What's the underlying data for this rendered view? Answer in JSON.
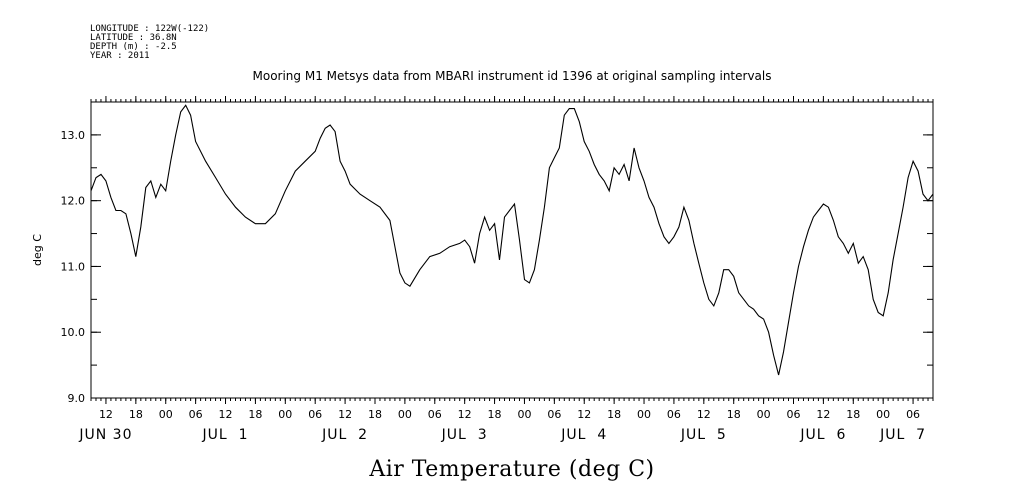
{
  "header": {
    "longitude": "LONGITUDE : 122W(-122)",
    "latitude": "LATITUDE : 36.8N",
    "depth": "DEPTH (m) : -2.5",
    "year": "YEAR : 2011"
  },
  "chart_data": {
    "type": "line",
    "title": "Mooring M1 Metsys data from MBARI instrument id 1396 at original sampling intervals",
    "xlabel": "Air Temperature (deg C)",
    "ylabel": "deg C",
    "xlim": [
      "2011-06-30T09:00",
      "2011-07-07T10:00"
    ],
    "ylim": [
      9.0,
      13.5
    ],
    "y_ticks": [
      "9.0",
      "10.0",
      "11.0",
      "12.0",
      "13.0"
    ],
    "x_hour_ticks": [
      {
        "t": "2011-06-30T12:00",
        "label": "12"
      },
      {
        "t": "2011-06-30T18:00",
        "label": "18"
      },
      {
        "t": "2011-07-01T00:00",
        "label": "00"
      },
      {
        "t": "2011-07-01T06:00",
        "label": "06"
      },
      {
        "t": "2011-07-01T12:00",
        "label": "12"
      },
      {
        "t": "2011-07-01T18:00",
        "label": "18"
      },
      {
        "t": "2011-07-02T00:00",
        "label": "00"
      },
      {
        "t": "2011-07-02T06:00",
        "label": "06"
      },
      {
        "t": "2011-07-02T12:00",
        "label": "12"
      },
      {
        "t": "2011-07-02T18:00",
        "label": "18"
      },
      {
        "t": "2011-07-03T00:00",
        "label": "00"
      },
      {
        "t": "2011-07-03T06:00",
        "label": "06"
      },
      {
        "t": "2011-07-03T12:00",
        "label": "12"
      },
      {
        "t": "2011-07-03T18:00",
        "label": "18"
      },
      {
        "t": "2011-07-04T00:00",
        "label": "00"
      },
      {
        "t": "2011-07-04T06:00",
        "label": "06"
      },
      {
        "t": "2011-07-04T12:00",
        "label": "12"
      },
      {
        "t": "2011-07-04T18:00",
        "label": "18"
      },
      {
        "t": "2011-07-05T00:00",
        "label": "00"
      },
      {
        "t": "2011-07-05T06:00",
        "label": "06"
      },
      {
        "t": "2011-07-05T12:00",
        "label": "12"
      },
      {
        "t": "2011-07-05T18:00",
        "label": "18"
      },
      {
        "t": "2011-07-06T00:00",
        "label": "00"
      },
      {
        "t": "2011-07-06T06:00",
        "label": "06"
      },
      {
        "t": "2011-07-06T12:00",
        "label": "12"
      },
      {
        "t": "2011-07-06T18:00",
        "label": "18"
      },
      {
        "t": "2011-07-07T00:00",
        "label": "00"
      },
      {
        "t": "2011-07-07T06:00",
        "label": "06"
      }
    ],
    "x_day_labels": [
      {
        "t": "2011-06-30T12:00",
        "label": "JUN 30"
      },
      {
        "t": "2011-07-01T12:00",
        "label": "JUL  1"
      },
      {
        "t": "2011-07-02T12:00",
        "label": "JUL  2"
      },
      {
        "t": "2011-07-03T12:00",
        "label": "JUL  3"
      },
      {
        "t": "2011-07-04T12:00",
        "label": "JUL  4"
      },
      {
        "t": "2011-07-05T12:00",
        "label": "JUL  5"
      },
      {
        "t": "2011-07-06T12:00",
        "label": "JUL  6"
      },
      {
        "t": "2011-07-07T04:00",
        "label": "JUL  7"
      }
    ],
    "grid": false,
    "series": [
      {
        "values": [
          [
            "2011-06-30T09:00",
            12.15
          ],
          [
            "2011-06-30T10:00",
            12.35
          ],
          [
            "2011-06-30T11:00",
            12.4
          ],
          [
            "2011-06-30T12:00",
            12.3
          ],
          [
            "2011-06-30T13:00",
            12.05
          ],
          [
            "2011-06-30T14:00",
            11.85
          ],
          [
            "2011-06-30T15:00",
            11.85
          ],
          [
            "2011-06-30T16:00",
            11.8
          ],
          [
            "2011-06-30T17:00",
            11.5
          ],
          [
            "2011-06-30T18:00",
            11.15
          ],
          [
            "2011-06-30T19:00",
            11.6
          ],
          [
            "2011-06-30T20:00",
            12.2
          ],
          [
            "2011-06-30T21:00",
            12.3
          ],
          [
            "2011-06-30T22:00",
            12.05
          ],
          [
            "2011-06-30T23:00",
            12.25
          ],
          [
            "2011-07-01T00:00",
            12.15
          ],
          [
            "2011-07-01T01:00",
            12.6
          ],
          [
            "2011-07-01T02:00",
            13.0
          ],
          [
            "2011-07-01T03:00",
            13.35
          ],
          [
            "2011-07-01T04:00",
            13.45
          ],
          [
            "2011-07-01T05:00",
            13.3
          ],
          [
            "2011-07-01T06:00",
            12.9
          ],
          [
            "2011-07-01T08:00",
            12.6
          ],
          [
            "2011-07-01T10:00",
            12.35
          ],
          [
            "2011-07-01T12:00",
            12.1
          ],
          [
            "2011-07-01T14:00",
            11.9
          ],
          [
            "2011-07-01T16:00",
            11.75
          ],
          [
            "2011-07-01T18:00",
            11.65
          ],
          [
            "2011-07-01T20:00",
            11.65
          ],
          [
            "2011-07-01T22:00",
            11.8
          ],
          [
            "2011-07-02T00:00",
            12.15
          ],
          [
            "2011-07-02T02:00",
            12.45
          ],
          [
            "2011-07-02T04:00",
            12.6
          ],
          [
            "2011-07-02T06:00",
            12.75
          ],
          [
            "2011-07-02T07:00",
            12.95
          ],
          [
            "2011-07-02T08:00",
            13.1
          ],
          [
            "2011-07-02T09:00",
            13.15
          ],
          [
            "2011-07-02T10:00",
            13.05
          ],
          [
            "2011-07-02T11:00",
            12.6
          ],
          [
            "2011-07-02T12:00",
            12.45
          ],
          [
            "2011-07-02T13:00",
            12.25
          ],
          [
            "2011-07-02T15:00",
            12.1
          ],
          [
            "2011-07-02T17:00",
            12.0
          ],
          [
            "2011-07-02T19:00",
            11.9
          ],
          [
            "2011-07-02T21:00",
            11.7
          ],
          [
            "2011-07-02T22:00",
            11.3
          ],
          [
            "2011-07-02T23:00",
            10.9
          ],
          [
            "2011-07-03T00:00",
            10.75
          ],
          [
            "2011-07-03T01:00",
            10.7
          ],
          [
            "2011-07-03T03:00",
            10.95
          ],
          [
            "2011-07-03T05:00",
            11.15
          ],
          [
            "2011-07-03T07:00",
            11.2
          ],
          [
            "2011-07-03T09:00",
            11.3
          ],
          [
            "2011-07-03T11:00",
            11.35
          ],
          [
            "2011-07-03T12:00",
            11.4
          ],
          [
            "2011-07-03T13:00",
            11.3
          ],
          [
            "2011-07-03T14:00",
            11.05
          ],
          [
            "2011-07-03T15:00",
            11.5
          ],
          [
            "2011-07-03T16:00",
            11.75
          ],
          [
            "2011-07-03T17:00",
            11.55
          ],
          [
            "2011-07-03T18:00",
            11.65
          ],
          [
            "2011-07-03T19:00",
            11.1
          ],
          [
            "2011-07-03T20:00",
            11.75
          ],
          [
            "2011-07-03T21:00",
            11.85
          ],
          [
            "2011-07-03T22:00",
            11.95
          ],
          [
            "2011-07-03T23:00",
            11.4
          ],
          [
            "2011-07-04T00:00",
            10.8
          ],
          [
            "2011-07-04T01:00",
            10.75
          ],
          [
            "2011-07-04T02:00",
            10.95
          ],
          [
            "2011-07-04T03:00",
            11.4
          ],
          [
            "2011-07-04T04:00",
            11.9
          ],
          [
            "2011-07-04T05:00",
            12.5
          ],
          [
            "2011-07-04T06:00",
            12.65
          ],
          [
            "2011-07-04T07:00",
            12.8
          ],
          [
            "2011-07-04T08:00",
            13.3
          ],
          [
            "2011-07-04T09:00",
            13.4
          ],
          [
            "2011-07-04T10:00",
            13.4
          ],
          [
            "2011-07-04T11:00",
            13.2
          ],
          [
            "2011-07-04T12:00",
            12.9
          ],
          [
            "2011-07-04T13:00",
            12.75
          ],
          [
            "2011-07-04T14:00",
            12.55
          ],
          [
            "2011-07-04T15:00",
            12.4
          ],
          [
            "2011-07-04T16:00",
            12.3
          ],
          [
            "2011-07-04T17:00",
            12.15
          ],
          [
            "2011-07-04T18:00",
            12.5
          ],
          [
            "2011-07-04T19:00",
            12.4
          ],
          [
            "2011-07-04T20:00",
            12.55
          ],
          [
            "2011-07-04T21:00",
            12.3
          ],
          [
            "2011-07-04T22:00",
            12.8
          ],
          [
            "2011-07-04T23:00",
            12.5
          ],
          [
            "2011-07-05T00:00",
            12.3
          ],
          [
            "2011-07-05T01:00",
            12.05
          ],
          [
            "2011-07-05T02:00",
            11.9
          ],
          [
            "2011-07-05T03:00",
            11.65
          ],
          [
            "2011-07-05T04:00",
            11.45
          ],
          [
            "2011-07-05T05:00",
            11.35
          ],
          [
            "2011-07-05T06:00",
            11.45
          ],
          [
            "2011-07-05T07:00",
            11.6
          ],
          [
            "2011-07-05T08:00",
            11.9
          ],
          [
            "2011-07-05T09:00",
            11.7
          ],
          [
            "2011-07-05T10:00",
            11.35
          ],
          [
            "2011-07-05T11:00",
            11.05
          ],
          [
            "2011-07-05T12:00",
            10.75
          ],
          [
            "2011-07-05T13:00",
            10.5
          ],
          [
            "2011-07-05T14:00",
            10.4
          ],
          [
            "2011-07-05T15:00",
            10.6
          ],
          [
            "2011-07-05T16:00",
            10.95
          ],
          [
            "2011-07-05T17:00",
            10.95
          ],
          [
            "2011-07-05T18:00",
            10.85
          ],
          [
            "2011-07-05T19:00",
            10.6
          ],
          [
            "2011-07-05T20:00",
            10.5
          ],
          [
            "2011-07-05T21:00",
            10.4
          ],
          [
            "2011-07-05T22:00",
            10.35
          ],
          [
            "2011-07-05T23:00",
            10.25
          ],
          [
            "2011-07-06T00:00",
            10.2
          ],
          [
            "2011-07-06T01:00",
            10.0
          ],
          [
            "2011-07-06T02:00",
            9.65
          ],
          [
            "2011-07-06T03:00",
            9.35
          ],
          [
            "2011-07-06T04:00",
            9.7
          ],
          [
            "2011-07-06T05:00",
            10.15
          ],
          [
            "2011-07-06T06:00",
            10.6
          ],
          [
            "2011-07-06T07:00",
            11.0
          ],
          [
            "2011-07-06T08:00",
            11.3
          ],
          [
            "2011-07-06T09:00",
            11.55
          ],
          [
            "2011-07-06T10:00",
            11.75
          ],
          [
            "2011-07-06T11:00",
            11.85
          ],
          [
            "2011-07-06T12:00",
            11.95
          ],
          [
            "2011-07-06T13:00",
            11.9
          ],
          [
            "2011-07-06T14:00",
            11.7
          ],
          [
            "2011-07-06T15:00",
            11.45
          ],
          [
            "2011-07-06T16:00",
            11.35
          ],
          [
            "2011-07-06T17:00",
            11.2
          ],
          [
            "2011-07-06T18:00",
            11.35
          ],
          [
            "2011-07-06T19:00",
            11.05
          ],
          [
            "2011-07-06T20:00",
            11.15
          ],
          [
            "2011-07-06T21:00",
            10.95
          ],
          [
            "2011-07-06T22:00",
            10.5
          ],
          [
            "2011-07-06T23:00",
            10.3
          ],
          [
            "2011-07-07T00:00",
            10.25
          ],
          [
            "2011-07-07T01:00",
            10.6
          ],
          [
            "2011-07-07T02:00",
            11.1
          ],
          [
            "2011-07-07T03:00",
            11.5
          ],
          [
            "2011-07-07T04:00",
            11.9
          ],
          [
            "2011-07-07T05:00",
            12.35
          ],
          [
            "2011-07-07T06:00",
            12.6
          ],
          [
            "2011-07-07T07:00",
            12.45
          ],
          [
            "2011-07-07T08:00",
            12.1
          ],
          [
            "2011-07-07T09:00",
            12.0
          ],
          [
            "2011-07-07T10:00",
            12.1
          ]
        ]
      }
    ]
  }
}
